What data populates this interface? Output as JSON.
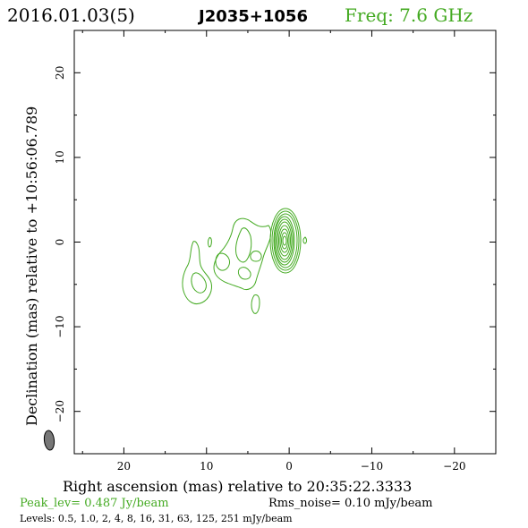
{
  "header": {
    "date": "2016.01.03(5)",
    "source": "J2035+1056",
    "freq": "Freq: 7.6 GHz"
  },
  "footer": {
    "peak": "Peak_lev=  0.487 Jy/beam",
    "rms": "Rms_noise= 0.10 mJy/beam",
    "levels": "Levels: 0.5, 1.0,   2,   4,   8,  16,  31,  63, 125, 251 mJy/beam"
  },
  "colors": {
    "contour": "#44aa22",
    "beam": "#777777",
    "axes": "#000000"
  },
  "chart_data": {
    "type": "contour",
    "xlabel": "Right ascension (mas) relative to 20:35:22.3333",
    "ylabel": "Declination (mas) relative to +10:56:06.789",
    "xlim": [
      26,
      -25
    ],
    "ylim": [
      -25,
      25
    ],
    "x_ticks": [
      20,
      10,
      0,
      -10,
      -20
    ],
    "x_tick_labels": [
      "20",
      "10",
      "0",
      "−10",
      "−20"
    ],
    "y_ticks": [
      20,
      10,
      0,
      -10,
      -20
    ],
    "y_tick_labels": [
      "20",
      "10",
      "0",
      "−10",
      "−20"
    ],
    "contour_levels_mJy": [
      0.5,
      1.0,
      2,
      4,
      8,
      16,
      31,
      63,
      125,
      251
    ],
    "peak_Jy_per_beam": 0.487,
    "rms_noise_mJy_per_beam": 0.1,
    "core": {
      "x": 0,
      "y": 0
    },
    "beam": {
      "x": 22,
      "y": -23.5
    }
  }
}
